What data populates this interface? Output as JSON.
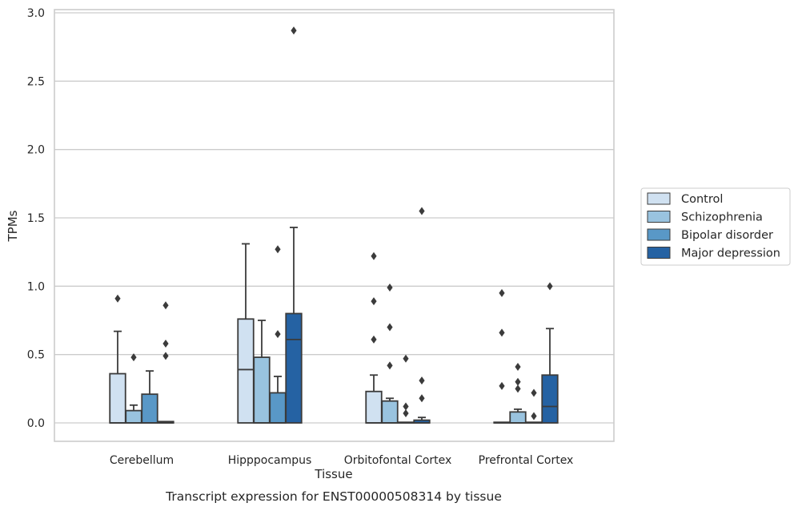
{
  "chart_data": {
    "type": "box",
    "xlabel": "Tissue",
    "ylabel": "TPMs",
    "caption": "Transcript expression for ENST00000508314 by tissue",
    "ylim": [
      -0.14,
      3.02
    ],
    "yticks": [
      0.0,
      0.5,
      1.0,
      1.5,
      2.0,
      2.5,
      3.0
    ],
    "ytick_labels": [
      "0.0",
      "0.5",
      "1.0",
      "1.5",
      "2.0",
      "2.5",
      "3.0"
    ],
    "grid": "horizontal",
    "legend_position": "right",
    "categories": [
      "Cerebellum",
      "Hipppocampus",
      "Orbitofontal Cortex",
      "Prefrontal Cortex"
    ],
    "series": [
      {
        "name": "Control",
        "color": "#d0e1f1",
        "boxes": [
          {
            "q1": 0.0,
            "median": 0.0,
            "q3": 0.36,
            "whisker_low": 0.0,
            "whisker_high": 0.67,
            "outliers": [
              0.91
            ]
          },
          {
            "q1": 0.0,
            "median": 0.39,
            "q3": 0.76,
            "whisker_low": 0.0,
            "whisker_high": 1.31,
            "outliers": []
          },
          {
            "q1": 0.0,
            "median": 0.0,
            "q3": 0.23,
            "whisker_low": 0.0,
            "whisker_high": 0.35,
            "outliers": [
              0.61,
              0.89,
              1.22
            ]
          },
          {
            "q1": 0.0,
            "median": 0.0,
            "q3": 0.0,
            "whisker_low": 0.0,
            "whisker_high": 0.0,
            "outliers": [
              0.27,
              0.66,
              0.95
            ]
          }
        ]
      },
      {
        "name": "Schizophrenia",
        "color": "#99c3df",
        "boxes": [
          {
            "q1": 0.0,
            "median": 0.0,
            "q3": 0.09,
            "whisker_low": 0.0,
            "whisker_high": 0.13,
            "outliers": [
              0.48
            ]
          },
          {
            "q1": 0.0,
            "median": 0.0,
            "q3": 0.48,
            "whisker_low": 0.0,
            "whisker_high": 0.75,
            "outliers": []
          },
          {
            "q1": 0.0,
            "median": 0.0,
            "q3": 0.16,
            "whisker_low": 0.0,
            "whisker_high": 0.18,
            "outliers": [
              0.42,
              0.7,
              0.99
            ]
          },
          {
            "q1": 0.0,
            "median": 0.0,
            "q3": 0.08,
            "whisker_low": 0.0,
            "whisker_high": 0.1,
            "outliers": [
              0.25,
              0.3,
              0.41
            ]
          }
        ]
      },
      {
        "name": "Bipolar disorder",
        "color": "#5998c7",
        "boxes": [
          {
            "q1": 0.0,
            "median": 0.0,
            "q3": 0.21,
            "whisker_low": 0.0,
            "whisker_high": 0.38,
            "outliers": []
          },
          {
            "q1": 0.0,
            "median": 0.0,
            "q3": 0.22,
            "whisker_low": 0.0,
            "whisker_high": 0.34,
            "outliers": [
              0.65,
              1.27
            ]
          },
          {
            "q1": 0.0,
            "median": 0.0,
            "q3": 0.0,
            "whisker_low": 0.0,
            "whisker_high": 0.0,
            "outliers": [
              0.07,
              0.12,
              0.47
            ]
          },
          {
            "q1": 0.0,
            "median": 0.0,
            "q3": 0.0,
            "whisker_low": 0.0,
            "whisker_high": 0.0,
            "outliers": [
              0.05,
              0.22
            ]
          }
        ]
      },
      {
        "name": "Major depression",
        "color": "#2562a3",
        "boxes": [
          {
            "q1": 0.0,
            "median": 0.0,
            "q3": 0.01,
            "whisker_low": 0.0,
            "whisker_high": 0.01,
            "outliers": [
              0.49,
              0.58,
              0.86
            ]
          },
          {
            "q1": 0.0,
            "median": 0.61,
            "q3": 0.8,
            "whisker_low": 0.0,
            "whisker_high": 1.43,
            "outliers": [
              2.87
            ]
          },
          {
            "q1": 0.0,
            "median": 0.0,
            "q3": 0.02,
            "whisker_low": 0.0,
            "whisker_high": 0.04,
            "outliers": [
              0.18,
              0.31,
              1.55
            ]
          },
          {
            "q1": 0.0,
            "median": 0.12,
            "q3": 0.35,
            "whisker_low": 0.0,
            "whisker_high": 0.69,
            "outliers": [
              1.0
            ]
          }
        ]
      }
    ]
  }
}
